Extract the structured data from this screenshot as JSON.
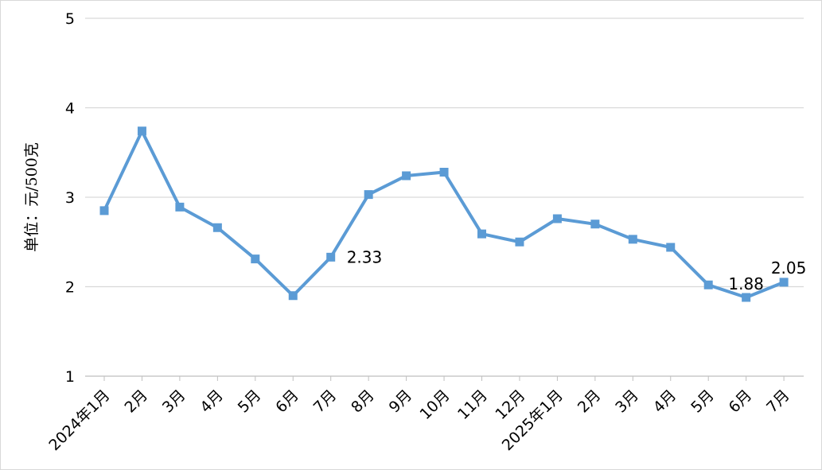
{
  "chart_data": {
    "type": "line",
    "title": "",
    "xlabel": "",
    "ylabel": "单位：元/500克",
    "ylim": [
      1,
      5
    ],
    "yticks": [
      1,
      2,
      3,
      4,
      5
    ],
    "grid": true,
    "legend": "none",
    "categories": [
      "2024年1月",
      "2月",
      "3月",
      "4月",
      "5月",
      "6月",
      "7月",
      "8月",
      "9月",
      "10月",
      "11月",
      "12月",
      "2025年1月",
      "2月",
      "3月",
      "4月",
      "5月",
      "6月",
      "7月"
    ],
    "series": [
      {
        "values": [
          2.85,
          3.74,
          2.89,
          2.66,
          2.31,
          1.9,
          2.33,
          3.03,
          3.24,
          3.28,
          2.59,
          2.5,
          2.76,
          2.7,
          2.53,
          2.44,
          2.02,
          1.88,
          2.05
        ],
        "color": "#5b9bd5"
      }
    ],
    "data_labels": [
      {
        "index": 6,
        "text": "2.33"
      },
      {
        "index": 17,
        "text": "1.88"
      },
      {
        "index": 18,
        "text": "2.05"
      }
    ]
  }
}
